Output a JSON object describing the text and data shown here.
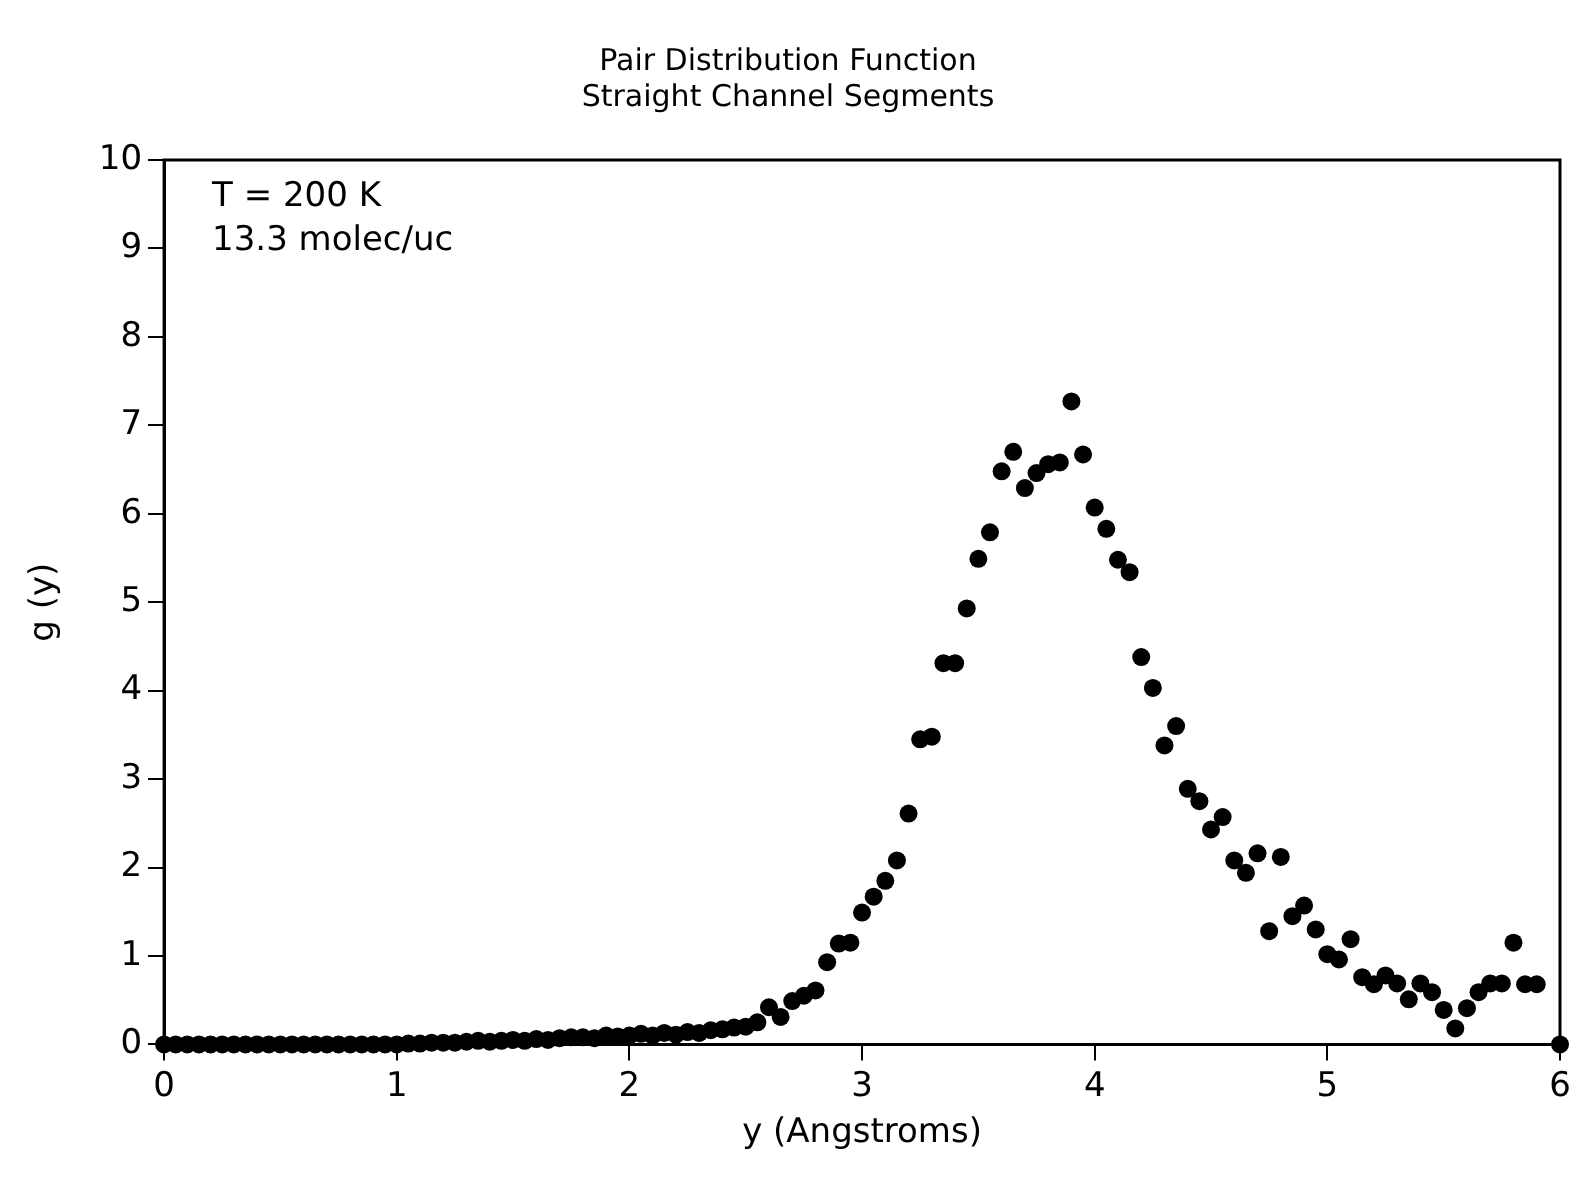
{
  "chart_data": {
    "type": "scatter",
    "title": "Pair Distribution Function",
    "subtitle": "Straight Channel Segments",
    "xlabel": "y (Angstroms)",
    "ylabel": "g (y)",
    "annotations": [
      "T = 200 K",
      "13.3 molec/uc"
    ],
    "xlim": [
      0,
      6
    ],
    "xticks": [
      0,
      1,
      2,
      3,
      4,
      5,
      6
    ],
    "ylim": [
      0,
      10
    ],
    "yticks": [
      0,
      1,
      2,
      3,
      4,
      5,
      6,
      7,
      8,
      9,
      10
    ],
    "grid": false,
    "legend": false,
    "marker": "circle",
    "series": [
      {
        "color": "#000000",
        "x": [
          0,
          0.05,
          0.1,
          0.15,
          0.2,
          0.25,
          0.3,
          0.35,
          0.4,
          0.45,
          0.5,
          0.55,
          0.6,
          0.65,
          0.7,
          0.75,
          0.8,
          0.85,
          0.9,
          0.95,
          1.0,
          1.05,
          1.1,
          1.15,
          1.2,
          1.25,
          1.3,
          1.35,
          1.4,
          1.45,
          1.5,
          1.55,
          1.6,
          1.65,
          1.7,
          1.75,
          1.8,
          1.85,
          1.9,
          1.95,
          2.0,
          2.05,
          2.1,
          2.15,
          2.2,
          2.25,
          2.3,
          2.35,
          2.4,
          2.45,
          2.5,
          2.55,
          2.6,
          2.65,
          2.7,
          2.75,
          2.8,
          2.85,
          2.9,
          2.95,
          3.0,
          3.05,
          3.1,
          3.15,
          3.2,
          3.25,
          3.3,
          3.35,
          3.4,
          3.45,
          3.5,
          3.55,
          3.6,
          3.65,
          3.7,
          3.75,
          3.8,
          3.85,
          3.9,
          3.95,
          4.0,
          4.05,
          4.1,
          4.15,
          4.2,
          4.25,
          4.3,
          4.35,
          4.4,
          4.45,
          4.5,
          4.55,
          4.6,
          4.65,
          4.7,
          4.75,
          4.8,
          4.85,
          4.9,
          4.95,
          5.0,
          5.05,
          5.1,
          5.15,
          5.2,
          5.25,
          5.3,
          5.35,
          5.4,
          5.45,
          5.5,
          5.55,
          5.6,
          5.65,
          5.7,
          5.75,
          5.8,
          5.85,
          5.9,
          6.0
        ],
        "values": [
          0,
          0,
          0,
          0,
          0,
          0,
          0,
          0,
          0,
          0,
          0,
          0,
          0,
          0,
          0,
          0,
          0,
          0,
          0,
          0,
          0,
          0.01,
          0.01,
          0.02,
          0.02,
          0.02,
          0.03,
          0.04,
          0.03,
          0.04,
          0.05,
          0.04,
          0.06,
          0.05,
          0.07,
          0.08,
          0.08,
          0.07,
          0.1,
          0.09,
          0.1,
          0.12,
          0.1,
          0.13,
          0.11,
          0.14,
          0.13,
          0.16,
          0.17,
          0.19,
          0.2,
          0.25,
          0.42,
          0.31,
          0.49,
          0.55,
          0.61,
          0.93,
          1.14,
          1.15,
          1.49,
          1.67,
          1.85,
          2.08,
          2.61,
          3.45,
          3.48,
          4.31,
          4.31,
          4.93,
          5.49,
          5.79,
          6.48,
          6.7,
          6.29,
          6.46,
          6.56,
          6.58,
          7.27,
          6.67,
          6.07,
          5.83,
          5.48,
          5.34,
          4.38,
          4.03,
          3.38,
          3.6,
          2.89,
          2.75,
          2.43,
          2.57,
          2.08,
          1.94,
          2.16,
          1.28,
          2.12,
          1.45,
          1.57,
          1.3,
          1.02,
          0.96,
          1.19,
          0.76,
          0.68,
          0.78,
          0.69,
          0.51,
          0.69,
          0.59,
          0.39,
          0.18,
          0.41,
          0.59,
          0.69,
          0.69,
          1.15,
          0.68,
          0.68,
          0
        ]
      }
    ]
  }
}
